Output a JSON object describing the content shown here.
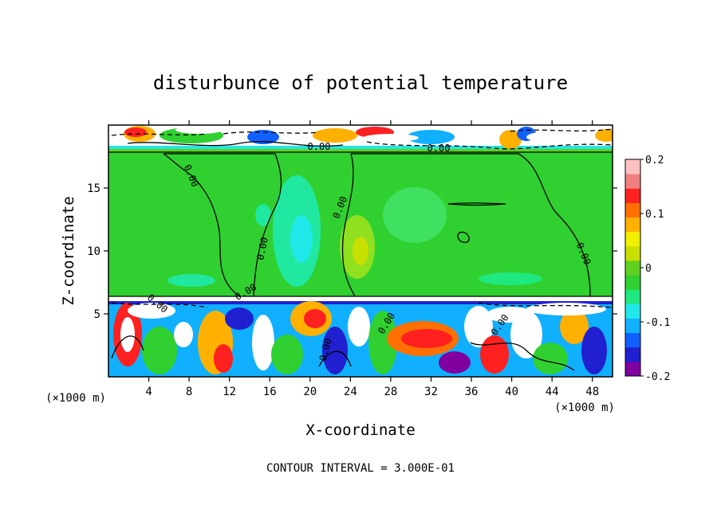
{
  "chart_data": {
    "type": "heatmap",
    "title": "disturbunce of potential temperature",
    "xlabel": "X-coordinate",
    "ylabel": "Z-coordinate",
    "x_unit": "(×1000 m)",
    "x_ticks": [
      4,
      8,
      12,
      16,
      20,
      24,
      28,
      32,
      36,
      40,
      44,
      48
    ],
    "y_ticks": [
      5,
      10,
      15
    ],
    "xlim": [
      0,
      50
    ],
    "ylim": [
      0,
      20
    ],
    "colorbar": {
      "range": [
        -0.2,
        0.2
      ],
      "tick_labels": [
        "0.2",
        "0.1",
        "0",
        "-0.1",
        "-0.2"
      ],
      "tick_values": [
        0.2,
        0.1,
        0,
        -0.1,
        -0.2
      ],
      "colors": [
        "#8000a0",
        "#2020d0",
        "#1060ff",
        "#10b0ff",
        "#20e8e8",
        "#20e880",
        "#30d030",
        "#60d020",
        "#c8e000",
        "#f0f000",
        "#ffb000",
        "#ff7000",
        "#ff2020",
        "#f08080",
        "#ffc0c0"
      ]
    },
    "contour_labels": [
      "0.00",
      "0.00",
      "0.00",
      "0.00",
      "0.00",
      "0.00",
      "0.00",
      "0.00",
      "0.00",
      "0.00",
      "0.00"
    ],
    "annotation": "CONTOUR INTERVAL = 3.000E-01"
  }
}
